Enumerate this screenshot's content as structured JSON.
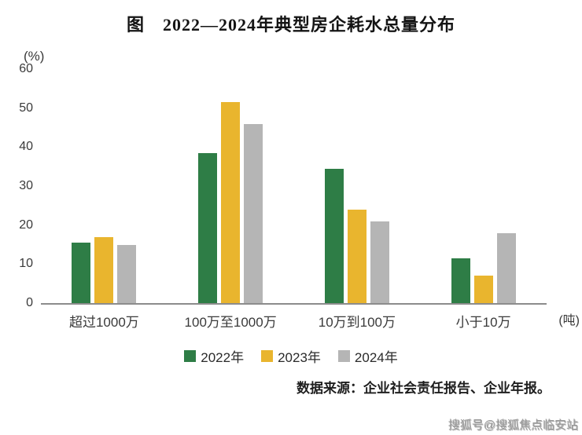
{
  "title": "图　2022—2024年典型房企耗水总量分布",
  "y_unit": "(%)",
  "x_unit": "(吨)",
  "source": "数据来源：企业社会责任报告、企业年报。",
  "watermark": "搜狐号@搜狐焦点临安站",
  "colors": {
    "s2022": "#2e7d46",
    "s2023": "#e9b52e",
    "s2024": "#b5b5b5",
    "axis": "#8c8c8c"
  },
  "chart_data": {
    "type": "bar",
    "title": "图 2022—2024年典型房企耗水总量分布",
    "categories": [
      "超过1000万",
      "100万至1000万",
      "10万到100万",
      "小于10万"
    ],
    "series": [
      {
        "name": "2022年",
        "color": "#2e7d46",
        "values": [
          15.5,
          38.5,
          34.5,
          11.5
        ]
      },
      {
        "name": "2023年",
        "color": "#e9b52e",
        "values": [
          17,
          51.5,
          24,
          7
        ]
      },
      {
        "name": "2024年",
        "color": "#b5b5b5",
        "values": [
          15,
          46,
          21,
          18
        ]
      }
    ],
    "ylabel": "(%)",
    "xlabel": "(吨)",
    "ylim": [
      0,
      60
    ],
    "yticks": [
      0,
      10,
      20,
      30,
      40,
      50,
      60
    ],
    "grid": false,
    "legend_position": "bottom"
  }
}
